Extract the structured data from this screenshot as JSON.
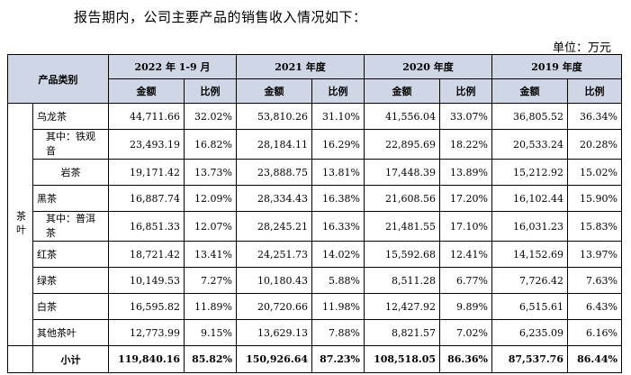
{
  "intro": "报告期内，公司主要产品的销售收入情况如下：",
  "unit": "单位：万元",
  "header": {
    "category": "产品类别",
    "periods": [
      "2022 年 1-9 月",
      "2021 年度",
      "2020 年度",
      "2019 年度"
    ],
    "amount": "金额",
    "ratio": "比例"
  },
  "side_label": "茶叶",
  "rows": [
    {
      "name": "乌龙茶",
      "cells": [
        "44,711.66",
        "32.02%",
        "53,810.26",
        "31.10%",
        "41,556.04",
        "33.07%",
        "36,805.52",
        "36.34%"
      ]
    },
    {
      "name": "其中：铁观音",
      "cells": [
        "23,493.19",
        "16.82%",
        "28,184.11",
        "16.29%",
        "22,895.69",
        "18.22%",
        "20,533.24",
        "20.28%"
      ]
    },
    {
      "name": "岩茶",
      "cells": [
        "19,171.42",
        "13.73%",
        "23,888.75",
        "13.81%",
        "17,448.39",
        "13.89%",
        "15,212.92",
        "15.02%"
      ]
    },
    {
      "name": "黑茶",
      "cells": [
        "16,887.74",
        "12.09%",
        "28,334.43",
        "16.38%",
        "21,608.56",
        "17.20%",
        "16,102.44",
        "15.90%"
      ]
    },
    {
      "name": "其中：普洱茶",
      "cells": [
        "16,851.33",
        "12.07%",
        "28,245.21",
        "16.33%",
        "21,481.55",
        "17.10%",
        "16,031.23",
        "15.83%"
      ]
    },
    {
      "name": "红茶",
      "cells": [
        "18,721.42",
        "13.41%",
        "24,251.73",
        "14.02%",
        "15,592.68",
        "12.41%",
        "14,152.69",
        "13.97%"
      ]
    },
    {
      "name": "绿茶",
      "cells": [
        "10,149.53",
        "7.27%",
        "10,180.43",
        "5.88%",
        "8,511.28",
        "6.77%",
        "7,726.42",
        "7.63%"
      ]
    },
    {
      "name": "白茶",
      "cells": [
        "16,595.82",
        "11.89%",
        "20,720.66",
        "11.98%",
        "12,427.92",
        "9.89%",
        "6,515.61",
        "6.43%"
      ]
    },
    {
      "name": "其他茶叶",
      "cells": [
        "12,773.99",
        "9.15%",
        "13,629.13",
        "7.88%",
        "8,821.57",
        "7.02%",
        "6,235.09",
        "6.16%"
      ]
    }
  ],
  "total": {
    "name": "小计",
    "cells": [
      "119,840.16",
      "85.82%",
      "150,926.64",
      "87.23%",
      "108,518.05",
      "86.36%",
      "87,537.76",
      "86.44%"
    ]
  }
}
